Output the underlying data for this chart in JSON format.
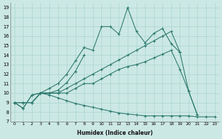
{
  "xlabel": "Humidex (Indice chaleur)",
  "bg_color": "#cce8e4",
  "grid_color": "#a8d4ce",
  "line_color": "#2d7a6e",
  "xlim": [
    -0.5,
    23.5
  ],
  "ylim": [
    7,
    19.5
  ],
  "xticks": [
    0,
    1,
    2,
    3,
    4,
    5,
    6,
    7,
    8,
    9,
    10,
    11,
    12,
    13,
    14,
    15,
    16,
    17,
    18,
    19,
    20,
    21,
    22,
    23
  ],
  "yticks": [
    7,
    8,
    9,
    10,
    11,
    12,
    13,
    14,
    15,
    16,
    17,
    18,
    19
  ],
  "series": [
    [
      9.0,
      8.4,
      9.8,
      10.0,
      10.5,
      11.0,
      12.0,
      13.4,
      14.8,
      14.5,
      17.0,
      17.0,
      16.2,
      19.0,
      16.5,
      15.3,
      16.3,
      16.8,
      15.2,
      14.3,
      null,
      null,
      null,
      null
    ],
    [
      9.0,
      8.4,
      9.8,
      10.0,
      10.0,
      10.3,
      11.1,
      12.3,
      14.0,
      null,
      null,
      null,
      null,
      null,
      null,
      null,
      null,
      null,
      null,
      null,
      null,
      null,
      null,
      null
    ],
    [
      9.0,
      9.0,
      9.0,
      10.0,
      10.0,
      10.0,
      10.5,
      11.0,
      11.5,
      12.0,
      12.5,
      13.0,
      13.5,
      14.0,
      14.5,
      15.0,
      15.5,
      16.0,
      16.5,
      14.3,
      10.2,
      7.7,
      null,
      null
    ],
    [
      9.0,
      9.0,
      9.0,
      10.0,
      10.0,
      10.0,
      10.0,
      10.5,
      11.0,
      11.0,
      11.5,
      12.0,
      12.5,
      12.8,
      13.0,
      13.3,
      13.7,
      14.1,
      14.5,
      12.5,
      10.2,
      7.7,
      null,
      null
    ],
    [
      9.0,
      9.0,
      9.0,
      10.0,
      9.8,
      9.5,
      9.2,
      8.9,
      8.7,
      8.5,
      8.3,
      8.1,
      7.9,
      7.8,
      7.7,
      7.6,
      7.6,
      7.6,
      7.6,
      7.6,
      7.6,
      7.5,
      7.5,
      7.5
    ]
  ],
  "marker": "+",
  "markersize": 3,
  "linewidth": 0.8
}
